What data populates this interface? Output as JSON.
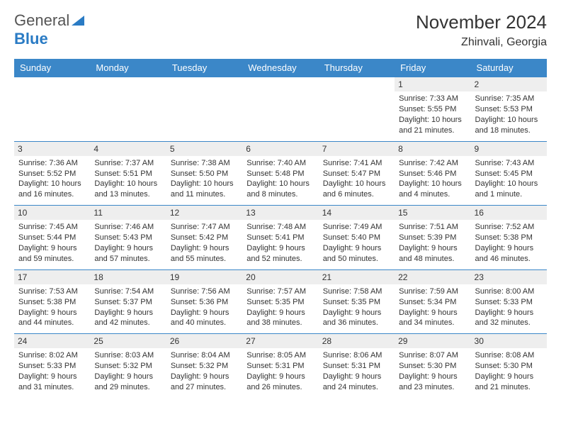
{
  "logo": {
    "word1": "General",
    "word2": "Blue"
  },
  "title": "November 2024",
  "location": "Zhinvali, Georgia",
  "colors": {
    "header_bg": "#3b87c8",
    "header_text": "#ffffff",
    "border": "#3b87c8",
    "daynum_bg": "#eeeeee",
    "brand_blue": "#2a7bc4"
  },
  "day_names": [
    "Sunday",
    "Monday",
    "Tuesday",
    "Wednesday",
    "Thursday",
    "Friday",
    "Saturday"
  ],
  "weeks": [
    [
      {
        "n": "",
        "sunrise": "",
        "sunset": "",
        "daylight": ""
      },
      {
        "n": "",
        "sunrise": "",
        "sunset": "",
        "daylight": ""
      },
      {
        "n": "",
        "sunrise": "",
        "sunset": "",
        "daylight": ""
      },
      {
        "n": "",
        "sunrise": "",
        "sunset": "",
        "daylight": ""
      },
      {
        "n": "",
        "sunrise": "",
        "sunset": "",
        "daylight": ""
      },
      {
        "n": "1",
        "sunrise": "Sunrise: 7:33 AM",
        "sunset": "Sunset: 5:55 PM",
        "daylight": "Daylight: 10 hours and 21 minutes."
      },
      {
        "n": "2",
        "sunrise": "Sunrise: 7:35 AM",
        "sunset": "Sunset: 5:53 PM",
        "daylight": "Daylight: 10 hours and 18 minutes."
      }
    ],
    [
      {
        "n": "3",
        "sunrise": "Sunrise: 7:36 AM",
        "sunset": "Sunset: 5:52 PM",
        "daylight": "Daylight: 10 hours and 16 minutes."
      },
      {
        "n": "4",
        "sunrise": "Sunrise: 7:37 AM",
        "sunset": "Sunset: 5:51 PM",
        "daylight": "Daylight: 10 hours and 13 minutes."
      },
      {
        "n": "5",
        "sunrise": "Sunrise: 7:38 AM",
        "sunset": "Sunset: 5:50 PM",
        "daylight": "Daylight: 10 hours and 11 minutes."
      },
      {
        "n": "6",
        "sunrise": "Sunrise: 7:40 AM",
        "sunset": "Sunset: 5:48 PM",
        "daylight": "Daylight: 10 hours and 8 minutes."
      },
      {
        "n": "7",
        "sunrise": "Sunrise: 7:41 AM",
        "sunset": "Sunset: 5:47 PM",
        "daylight": "Daylight: 10 hours and 6 minutes."
      },
      {
        "n": "8",
        "sunrise": "Sunrise: 7:42 AM",
        "sunset": "Sunset: 5:46 PM",
        "daylight": "Daylight: 10 hours and 4 minutes."
      },
      {
        "n": "9",
        "sunrise": "Sunrise: 7:43 AM",
        "sunset": "Sunset: 5:45 PM",
        "daylight": "Daylight: 10 hours and 1 minute."
      }
    ],
    [
      {
        "n": "10",
        "sunrise": "Sunrise: 7:45 AM",
        "sunset": "Sunset: 5:44 PM",
        "daylight": "Daylight: 9 hours and 59 minutes."
      },
      {
        "n": "11",
        "sunrise": "Sunrise: 7:46 AM",
        "sunset": "Sunset: 5:43 PM",
        "daylight": "Daylight: 9 hours and 57 minutes."
      },
      {
        "n": "12",
        "sunrise": "Sunrise: 7:47 AM",
        "sunset": "Sunset: 5:42 PM",
        "daylight": "Daylight: 9 hours and 55 minutes."
      },
      {
        "n": "13",
        "sunrise": "Sunrise: 7:48 AM",
        "sunset": "Sunset: 5:41 PM",
        "daylight": "Daylight: 9 hours and 52 minutes."
      },
      {
        "n": "14",
        "sunrise": "Sunrise: 7:49 AM",
        "sunset": "Sunset: 5:40 PM",
        "daylight": "Daylight: 9 hours and 50 minutes."
      },
      {
        "n": "15",
        "sunrise": "Sunrise: 7:51 AM",
        "sunset": "Sunset: 5:39 PM",
        "daylight": "Daylight: 9 hours and 48 minutes."
      },
      {
        "n": "16",
        "sunrise": "Sunrise: 7:52 AM",
        "sunset": "Sunset: 5:38 PM",
        "daylight": "Daylight: 9 hours and 46 minutes."
      }
    ],
    [
      {
        "n": "17",
        "sunrise": "Sunrise: 7:53 AM",
        "sunset": "Sunset: 5:38 PM",
        "daylight": "Daylight: 9 hours and 44 minutes."
      },
      {
        "n": "18",
        "sunrise": "Sunrise: 7:54 AM",
        "sunset": "Sunset: 5:37 PM",
        "daylight": "Daylight: 9 hours and 42 minutes."
      },
      {
        "n": "19",
        "sunrise": "Sunrise: 7:56 AM",
        "sunset": "Sunset: 5:36 PM",
        "daylight": "Daylight: 9 hours and 40 minutes."
      },
      {
        "n": "20",
        "sunrise": "Sunrise: 7:57 AM",
        "sunset": "Sunset: 5:35 PM",
        "daylight": "Daylight: 9 hours and 38 minutes."
      },
      {
        "n": "21",
        "sunrise": "Sunrise: 7:58 AM",
        "sunset": "Sunset: 5:35 PM",
        "daylight": "Daylight: 9 hours and 36 minutes."
      },
      {
        "n": "22",
        "sunrise": "Sunrise: 7:59 AM",
        "sunset": "Sunset: 5:34 PM",
        "daylight": "Daylight: 9 hours and 34 minutes."
      },
      {
        "n": "23",
        "sunrise": "Sunrise: 8:00 AM",
        "sunset": "Sunset: 5:33 PM",
        "daylight": "Daylight: 9 hours and 32 minutes."
      }
    ],
    [
      {
        "n": "24",
        "sunrise": "Sunrise: 8:02 AM",
        "sunset": "Sunset: 5:33 PM",
        "daylight": "Daylight: 9 hours and 31 minutes."
      },
      {
        "n": "25",
        "sunrise": "Sunrise: 8:03 AM",
        "sunset": "Sunset: 5:32 PM",
        "daylight": "Daylight: 9 hours and 29 minutes."
      },
      {
        "n": "26",
        "sunrise": "Sunrise: 8:04 AM",
        "sunset": "Sunset: 5:32 PM",
        "daylight": "Daylight: 9 hours and 27 minutes."
      },
      {
        "n": "27",
        "sunrise": "Sunrise: 8:05 AM",
        "sunset": "Sunset: 5:31 PM",
        "daylight": "Daylight: 9 hours and 26 minutes."
      },
      {
        "n": "28",
        "sunrise": "Sunrise: 8:06 AM",
        "sunset": "Sunset: 5:31 PM",
        "daylight": "Daylight: 9 hours and 24 minutes."
      },
      {
        "n": "29",
        "sunrise": "Sunrise: 8:07 AM",
        "sunset": "Sunset: 5:30 PM",
        "daylight": "Daylight: 9 hours and 23 minutes."
      },
      {
        "n": "30",
        "sunrise": "Sunrise: 8:08 AM",
        "sunset": "Sunset: 5:30 PM",
        "daylight": "Daylight: 9 hours and 21 minutes."
      }
    ]
  ]
}
